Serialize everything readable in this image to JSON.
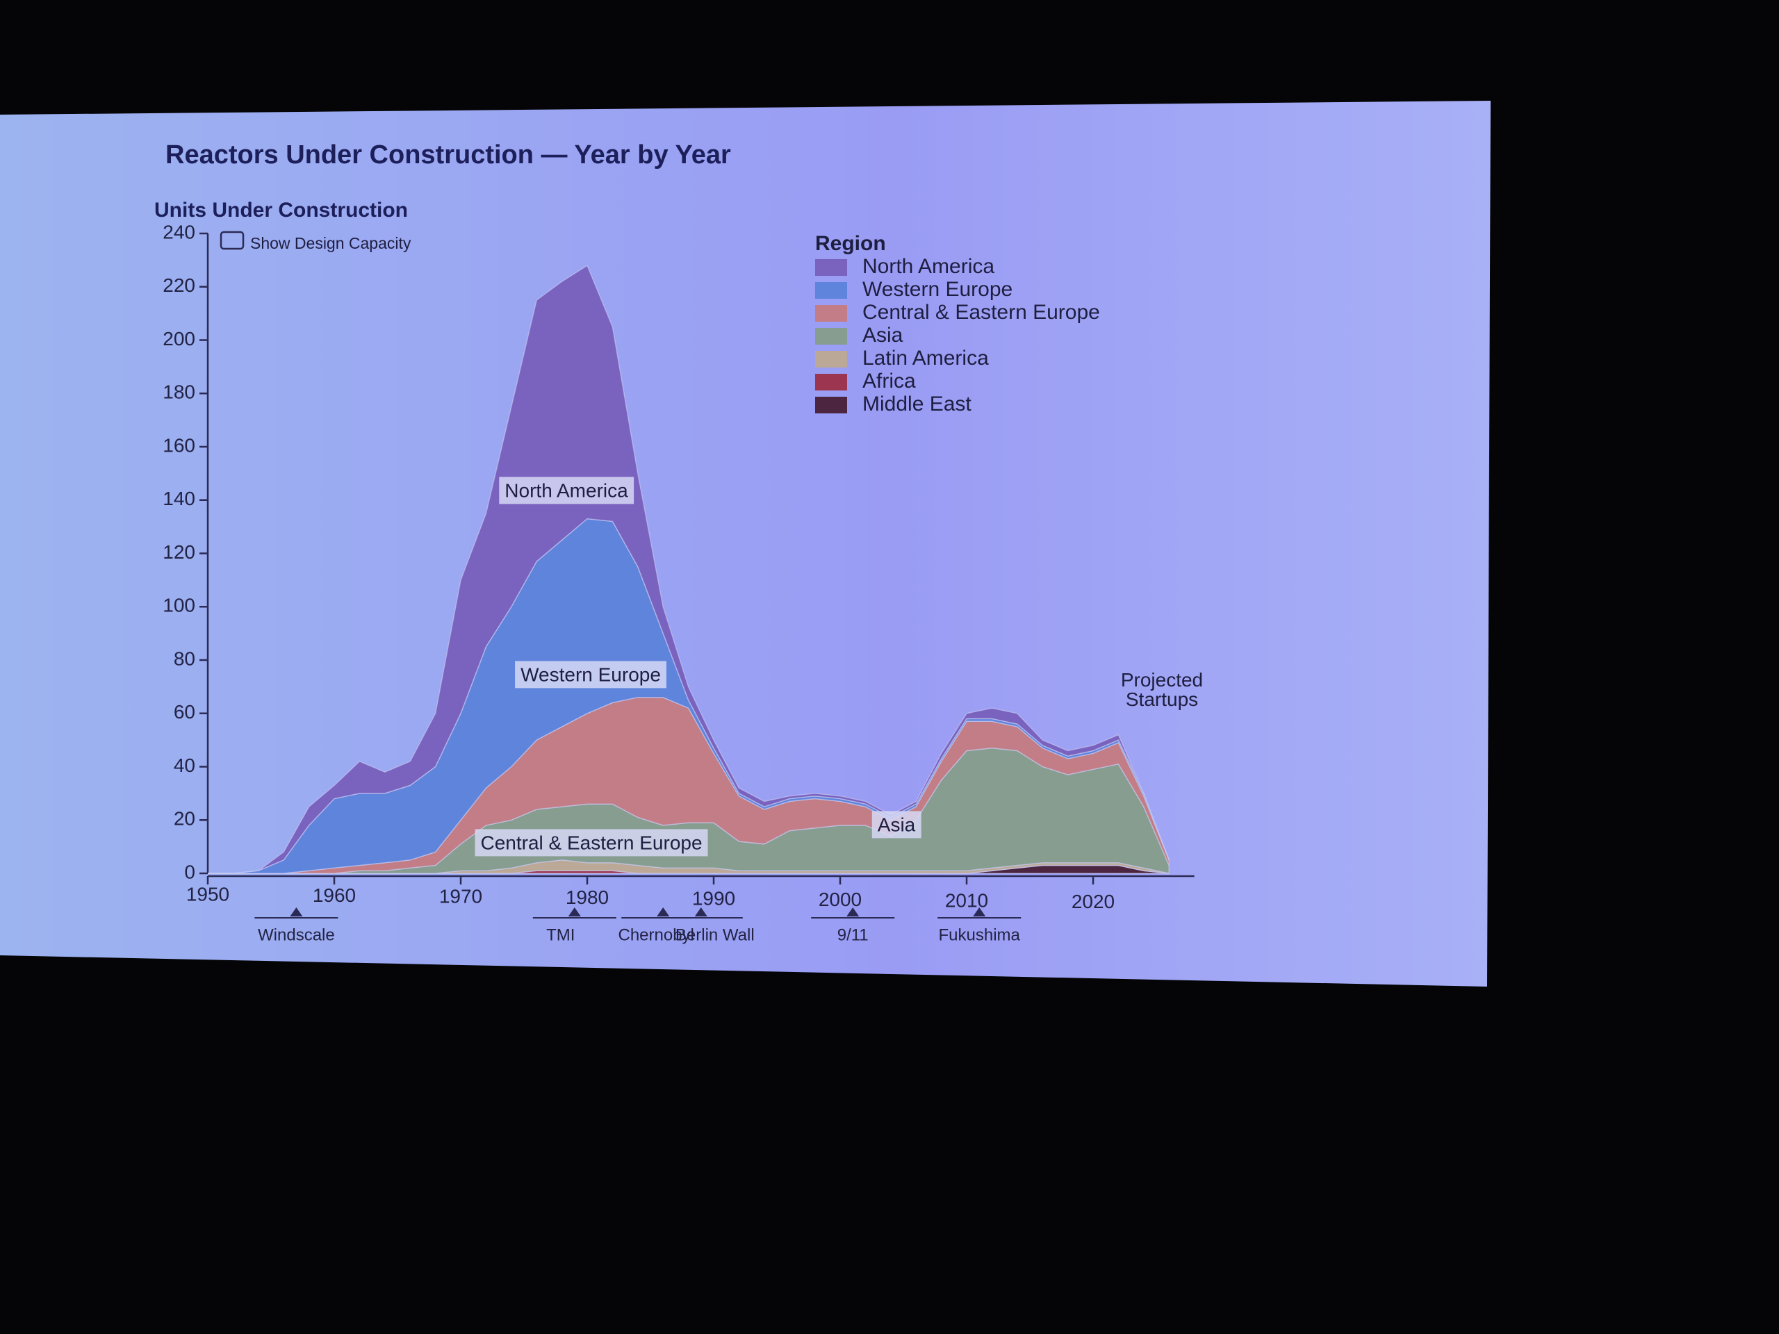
{
  "chart_data": {
    "type": "stacked_area",
    "title": "Reactors Under Construction — Year by Year",
    "y_label": "Units Under Construction",
    "checkbox_label": "Show Design Capacity",
    "legend_title": "Region",
    "x": [
      1950,
      1952,
      1954,
      1956,
      1958,
      1960,
      1962,
      1964,
      1966,
      1968,
      1970,
      1972,
      1974,
      1976,
      1978,
      1980,
      1982,
      1984,
      1986,
      1988,
      1990,
      1992,
      1994,
      1996,
      1998,
      2000,
      2002,
      2004,
      2006,
      2008,
      2010,
      2012,
      2014,
      2016,
      2018,
      2020,
      2022,
      2024,
      2026
    ],
    "series": [
      {
        "name": "North America",
        "color": "#7a62bf",
        "values": [
          0,
          0,
          0,
          3,
          7,
          5,
          12,
          8,
          9,
          20,
          50,
          50,
          75,
          98,
          97,
          95,
          73,
          35,
          10,
          5,
          3,
          2,
          2,
          1,
          1,
          1,
          1,
          1,
          1,
          2,
          2,
          4,
          4,
          2,
          2,
          2,
          2,
          0,
          0
        ]
      },
      {
        "name": "Western Europe",
        "color": "#5f84dc",
        "values": [
          0,
          0,
          1,
          5,
          17,
          26,
          27,
          26,
          28,
          32,
          40,
          53,
          60,
          67,
          70,
          73,
          68,
          49,
          24,
          3,
          2,
          1,
          1,
          1,
          1,
          1,
          1,
          1,
          1,
          1,
          1,
          1,
          1,
          1,
          1,
          1,
          1,
          1,
          0
        ]
      },
      {
        "name": "Central & Eastern Europe",
        "color": "#c27d86",
        "values": [
          0,
          0,
          0,
          0,
          1,
          2,
          2,
          3,
          3,
          5,
          9,
          14,
          20,
          26,
          30,
          34,
          38,
          45,
          48,
          43,
          26,
          17,
          13,
          11,
          11,
          9,
          7,
          6,
          5,
          7,
          11,
          10,
          9,
          7,
          6,
          6,
          8,
          4,
          2
        ]
      },
      {
        "name": "Asia",
        "color": "#879d90",
        "values": [
          0,
          0,
          0,
          0,
          0,
          0,
          1,
          1,
          2,
          3,
          10,
          17,
          18,
          20,
          20,
          22,
          22,
          18,
          16,
          17,
          17,
          11,
          10,
          15,
          16,
          17,
          17,
          13,
          19,
          34,
          45,
          45,
          43,
          36,
          33,
          35,
          37,
          23,
          3
        ]
      },
      {
        "name": "Latin America",
        "color": "#bca897",
        "values": [
          0,
          0,
          0,
          0,
          0,
          0,
          0,
          0,
          0,
          0,
          1,
          1,
          2,
          3,
          4,
          3,
          3,
          3,
          2,
          2,
          2,
          1,
          1,
          1,
          1,
          1,
          1,
          1,
          1,
          1,
          1,
          1,
          1,
          1,
          1,
          1,
          1,
          1,
          0
        ]
      },
      {
        "name": "Africa",
        "color": "#9c3550",
        "values": [
          0,
          0,
          0,
          0,
          0,
          0,
          0,
          0,
          0,
          0,
          0,
          0,
          0,
          1,
          1,
          1,
          1,
          0,
          0,
          0,
          0,
          0,
          0,
          0,
          0,
          0,
          0,
          0,
          0,
          0,
          0,
          0,
          0,
          0,
          0,
          0,
          0,
          0,
          0
        ]
      },
      {
        "name": "Middle East",
        "color": "#4c2540",
        "values": [
          0,
          0,
          0,
          0,
          0,
          0,
          0,
          0,
          0,
          0,
          0,
          0,
          0,
          0,
          0,
          0,
          0,
          0,
          0,
          0,
          0,
          0,
          0,
          0,
          0,
          0,
          0,
          0,
          0,
          0,
          0,
          1,
          2,
          3,
          3,
          3,
          3,
          1,
          0
        ]
      }
    ],
    "xlim": [
      1950,
      2028
    ],
    "xticks": [
      1950,
      1960,
      1970,
      1980,
      1990,
      2000,
      2010,
      2020
    ],
    "ylim": [
      0,
      240
    ],
    "yticks": [
      0,
      20,
      40,
      60,
      80,
      100,
      120,
      140,
      160,
      180,
      200,
      220,
      240
    ],
    "grid": false,
    "annotations": [
      "North America",
      "Western Europe",
      "Central & Eastern Europe",
      "Asia",
      "Projected Startups"
    ],
    "events": [
      {
        "label": "Windscale",
        "year": 1957
      },
      {
        "label": "TMI",
        "year": 1979
      },
      {
        "label": "Chernobyl",
        "year": 1986
      },
      {
        "label": "Berlin Wall",
        "year": 1989
      },
      {
        "label": "9/11",
        "year": 2001
      },
      {
        "label": "Fukushima",
        "year": 2011
      }
    ]
  }
}
